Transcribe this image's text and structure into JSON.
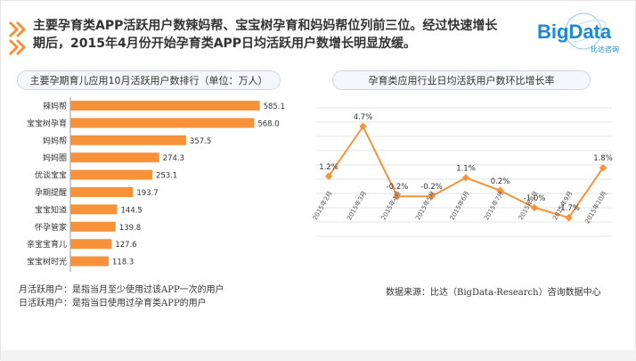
{
  "headline": {
    "line1": "主要孕育类APP活跃用户数辣妈帮、宝宝树孕育和妈妈帮位列前三位。经过快速增长",
    "line2": "期后，2015年4月份开始孕育类APP日均活跃用户数增长明显放缓。"
  },
  "logo": {
    "brand": "BigData",
    "sub": "比达咨询"
  },
  "colors": {
    "accent": "#f7923a",
    "bar": "#f7923a",
    "line": "#f7923a",
    "grid": "#e3e3e3"
  },
  "chart_data": [
    {
      "type": "bar",
      "orientation": "horizontal",
      "title": "主要孕期育儿应用10月活跃用户数排行（单位：万人）",
      "categories": [
        "辣妈帮",
        "宝宝树孕育",
        "妈妈帮",
        "妈妈圈",
        "优谈宝宝",
        "孕期提醒",
        "宝宝知道",
        "怀孕管家",
        "亲宝宝育儿",
        "宝宝树时光"
      ],
      "values": [
        585.1,
        568.0,
        357.5,
        274.3,
        253.1,
        193.7,
        144.5,
        139.8,
        127.6,
        118.3
      ],
      "value_labels": [
        "585.1",
        "568.0",
        "357.5",
        "274.3",
        "253.1",
        "193.7",
        "144.5",
        "139.8",
        "127.6",
        "118.3"
      ],
      "xlim": [
        0,
        600
      ]
    },
    {
      "type": "line",
      "title": "孕育类应用行业日均活跃用户数环比增长率",
      "categories": [
        "2015年2月",
        "2015年3月",
        "2015年4月",
        "2015年5月",
        "2015年6月",
        "2015年7月",
        "2015年8月",
        "2015年9月",
        "2015年10月"
      ],
      "values": [
        1.2,
        4.7,
        -0.2,
        -0.2,
        1.1,
        0.2,
        -1.0,
        -1.7,
        1.8
      ],
      "value_labels": [
        "1.2%",
        "4.7%",
        "-0.2%",
        "-0.2%",
        "1.1%",
        "0.2%",
        "-1.0%",
        "-1.7%",
        "1.8%"
      ],
      "ylim": [
        -3,
        6
      ],
      "grid": true
    }
  ],
  "footnotes": {
    "def1": "月活跃用户：是指当月至少使用过该APP一次的用户",
    "def2": "日活跃用户：是指当日使用过孕育类APP的用户",
    "source": "数据来源：比达（BigData-Research）咨询数据中心"
  }
}
